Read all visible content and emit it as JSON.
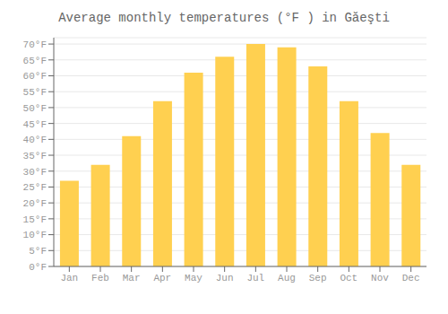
{
  "chart_data": {
    "type": "bar",
    "title": "Average monthly temperatures (°F ) in Găeşti",
    "categories": [
      "Jan",
      "Feb",
      "Mar",
      "Apr",
      "May",
      "Jun",
      "Jul",
      "Aug",
      "Sep",
      "Oct",
      "Nov",
      "Dec"
    ],
    "values": [
      27,
      32,
      41,
      52,
      61,
      66,
      70,
      69,
      63,
      52,
      42,
      32
    ],
    "color": "#FFD050",
    "ylim": [
      0,
      72
    ],
    "yticks": [
      {
        "value": 0,
        "label": "0°F"
      },
      {
        "value": 5,
        "label": "5°F"
      },
      {
        "value": 10,
        "label": "10°F"
      },
      {
        "value": 15,
        "label": "15°F"
      },
      {
        "value": 20,
        "label": "20°F"
      },
      {
        "value": 25,
        "label": "25°F"
      },
      {
        "value": 30,
        "label": "30°F"
      },
      {
        "value": 35,
        "label": "35°F"
      },
      {
        "value": 40,
        "label": "40°F"
      },
      {
        "value": 45,
        "label": "45°F"
      },
      {
        "value": 50,
        "label": "50°F"
      },
      {
        "value": 55,
        "label": "55°F"
      },
      {
        "value": 60,
        "label": "60°F"
      },
      {
        "value": 65,
        "label": "65°F"
      },
      {
        "value": 70,
        "label": "70°F"
      }
    ],
    "grid": true
  }
}
